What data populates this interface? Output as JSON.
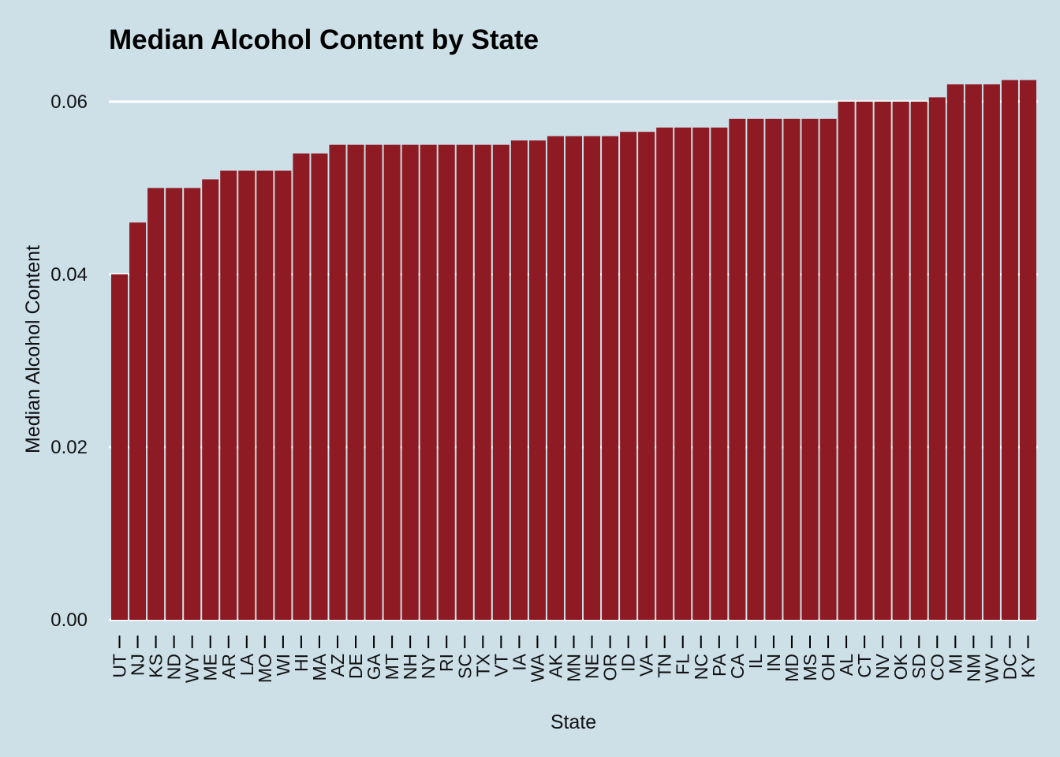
{
  "chart_data": {
    "type": "bar",
    "title": "Median Alcohol Content by State",
    "xlabel": "State",
    "ylabel": "Median Alcohol Content",
    "ylim": [
      0,
      0.0625
    ],
    "yticks": [
      0.0,
      0.02,
      0.04,
      0.06
    ],
    "ytick_labels": [
      "0.00",
      "0.02",
      "0.04",
      "0.06"
    ],
    "grid": true,
    "bar_color": "#8e1b23",
    "background_color": "#cde0e8",
    "categories": [
      "UT",
      "NJ",
      "KS",
      "ND",
      "WY",
      "ME",
      "AR",
      "LA",
      "MO",
      "WI",
      "HI",
      "MA",
      "AZ",
      "DE",
      "GA",
      "MT",
      "NH",
      "NY",
      "RI",
      "SC",
      "TX",
      "VT",
      "IA",
      "WA",
      "AK",
      "MN",
      "NE",
      "OR",
      "ID",
      "VA",
      "TN",
      "FL",
      "NC",
      "PA",
      "CA",
      "IL",
      "IN",
      "MD",
      "MS",
      "OH",
      "AL",
      "CT",
      "NV",
      "OK",
      "SD",
      "CO",
      "MI",
      "NM",
      "WV",
      "DC",
      "KY"
    ],
    "values": [
      0.04,
      0.046,
      0.05,
      0.05,
      0.05,
      0.051,
      0.052,
      0.052,
      0.052,
      0.052,
      0.054,
      0.054,
      0.055,
      0.055,
      0.055,
      0.055,
      0.055,
      0.055,
      0.055,
      0.055,
      0.055,
      0.055,
      0.0555,
      0.0555,
      0.056,
      0.056,
      0.056,
      0.056,
      0.0565,
      0.0565,
      0.057,
      0.057,
      0.057,
      0.057,
      0.058,
      0.058,
      0.058,
      0.058,
      0.058,
      0.058,
      0.06,
      0.06,
      0.06,
      0.06,
      0.06,
      0.0605,
      0.062,
      0.062,
      0.062,
      0.0625,
      0.0625
    ]
  }
}
